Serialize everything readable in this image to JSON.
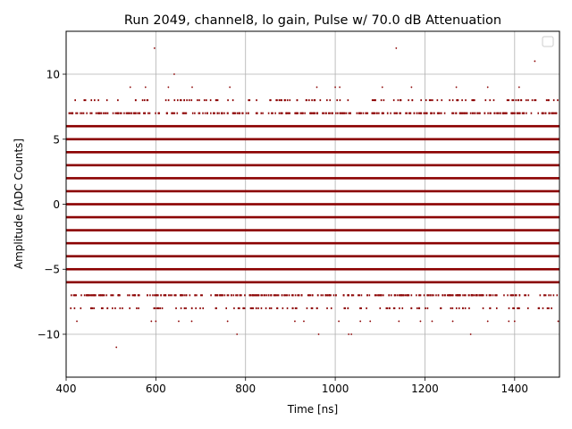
{
  "chart_data": {
    "type": "scatter",
    "title": "Run 2049, channel8, lo gain, Pulse w/ 70.0 dB Attenuation",
    "xlabel": "Time [ns]",
    "ylabel": "Amplitude [ADC Counts]",
    "xlim": [
      400,
      1500
    ],
    "ylim": [
      -13.3,
      13.3
    ],
    "xticks": [
      400,
      600,
      800,
      1000,
      1200,
      1400
    ],
    "yticks": [
      -10,
      -5,
      0,
      5,
      10
    ],
    "xtick_labels": [
      "400",
      "600",
      "800",
      "1000",
      "1200",
      "1400"
    ],
    "ytick_labels": [
      "−10",
      "−5",
      "0",
      "5",
      "10"
    ],
    "grid": true,
    "legend": "top-right, empty",
    "marker_color": "#8b0000",
    "description_of_data": "Dense sampled points at integer ADC levels -8 to 8; sparse outliers at +/-9 to +/-12",
    "dense_levels": [
      -8,
      -7,
      -6,
      -5,
      -4,
      -3,
      -2,
      -1,
      0,
      1,
      2,
      3,
      4,
      5,
      6,
      7,
      8
    ],
    "sparse_points": [
      {
        "x": 597,
        "y": 12
      },
      {
        "x": 1136,
        "y": 12
      },
      {
        "x": 1445,
        "y": 11
      },
      {
        "x": 641,
        "y": 10
      },
      {
        "x": 543,
        "y": 9
      },
      {
        "x": 577,
        "y": 9
      },
      {
        "x": 628,
        "y": 9
      },
      {
        "x": 681,
        "y": 9
      },
      {
        "x": 765,
        "y": 9
      },
      {
        "x": 959,
        "y": 9
      },
      {
        "x": 1000,
        "y": 9
      },
      {
        "x": 1010,
        "y": 9
      },
      {
        "x": 1105,
        "y": 9
      },
      {
        "x": 1170,
        "y": 9
      },
      {
        "x": 1270,
        "y": 9
      },
      {
        "x": 1340,
        "y": 9
      },
      {
        "x": 1410,
        "y": 9
      },
      {
        "x": 424,
        "y": -9
      },
      {
        "x": 590,
        "y": -9
      },
      {
        "x": 600,
        "y": -9
      },
      {
        "x": 651,
        "y": -9
      },
      {
        "x": 680,
        "y": -9
      },
      {
        "x": 760,
        "y": -9
      },
      {
        "x": 910,
        "y": -9
      },
      {
        "x": 930,
        "y": -9
      },
      {
        "x": 1008,
        "y": -9
      },
      {
        "x": 1056,
        "y": -9
      },
      {
        "x": 1078,
        "y": -9
      },
      {
        "x": 1142,
        "y": -9
      },
      {
        "x": 1190,
        "y": -9
      },
      {
        "x": 1216,
        "y": -9
      },
      {
        "x": 1262,
        "y": -9
      },
      {
        "x": 1340,
        "y": -9
      },
      {
        "x": 1387,
        "y": -9
      },
      {
        "x": 1400,
        "y": -9
      },
      {
        "x": 1497,
        "y": -9
      },
      {
        "x": 781,
        "y": -10
      },
      {
        "x": 963,
        "y": -10
      },
      {
        "x": 1030,
        "y": -10
      },
      {
        "x": 1036,
        "y": -10
      },
      {
        "x": 1302,
        "y": -10
      },
      {
        "x": 512,
        "y": -11
      }
    ]
  }
}
